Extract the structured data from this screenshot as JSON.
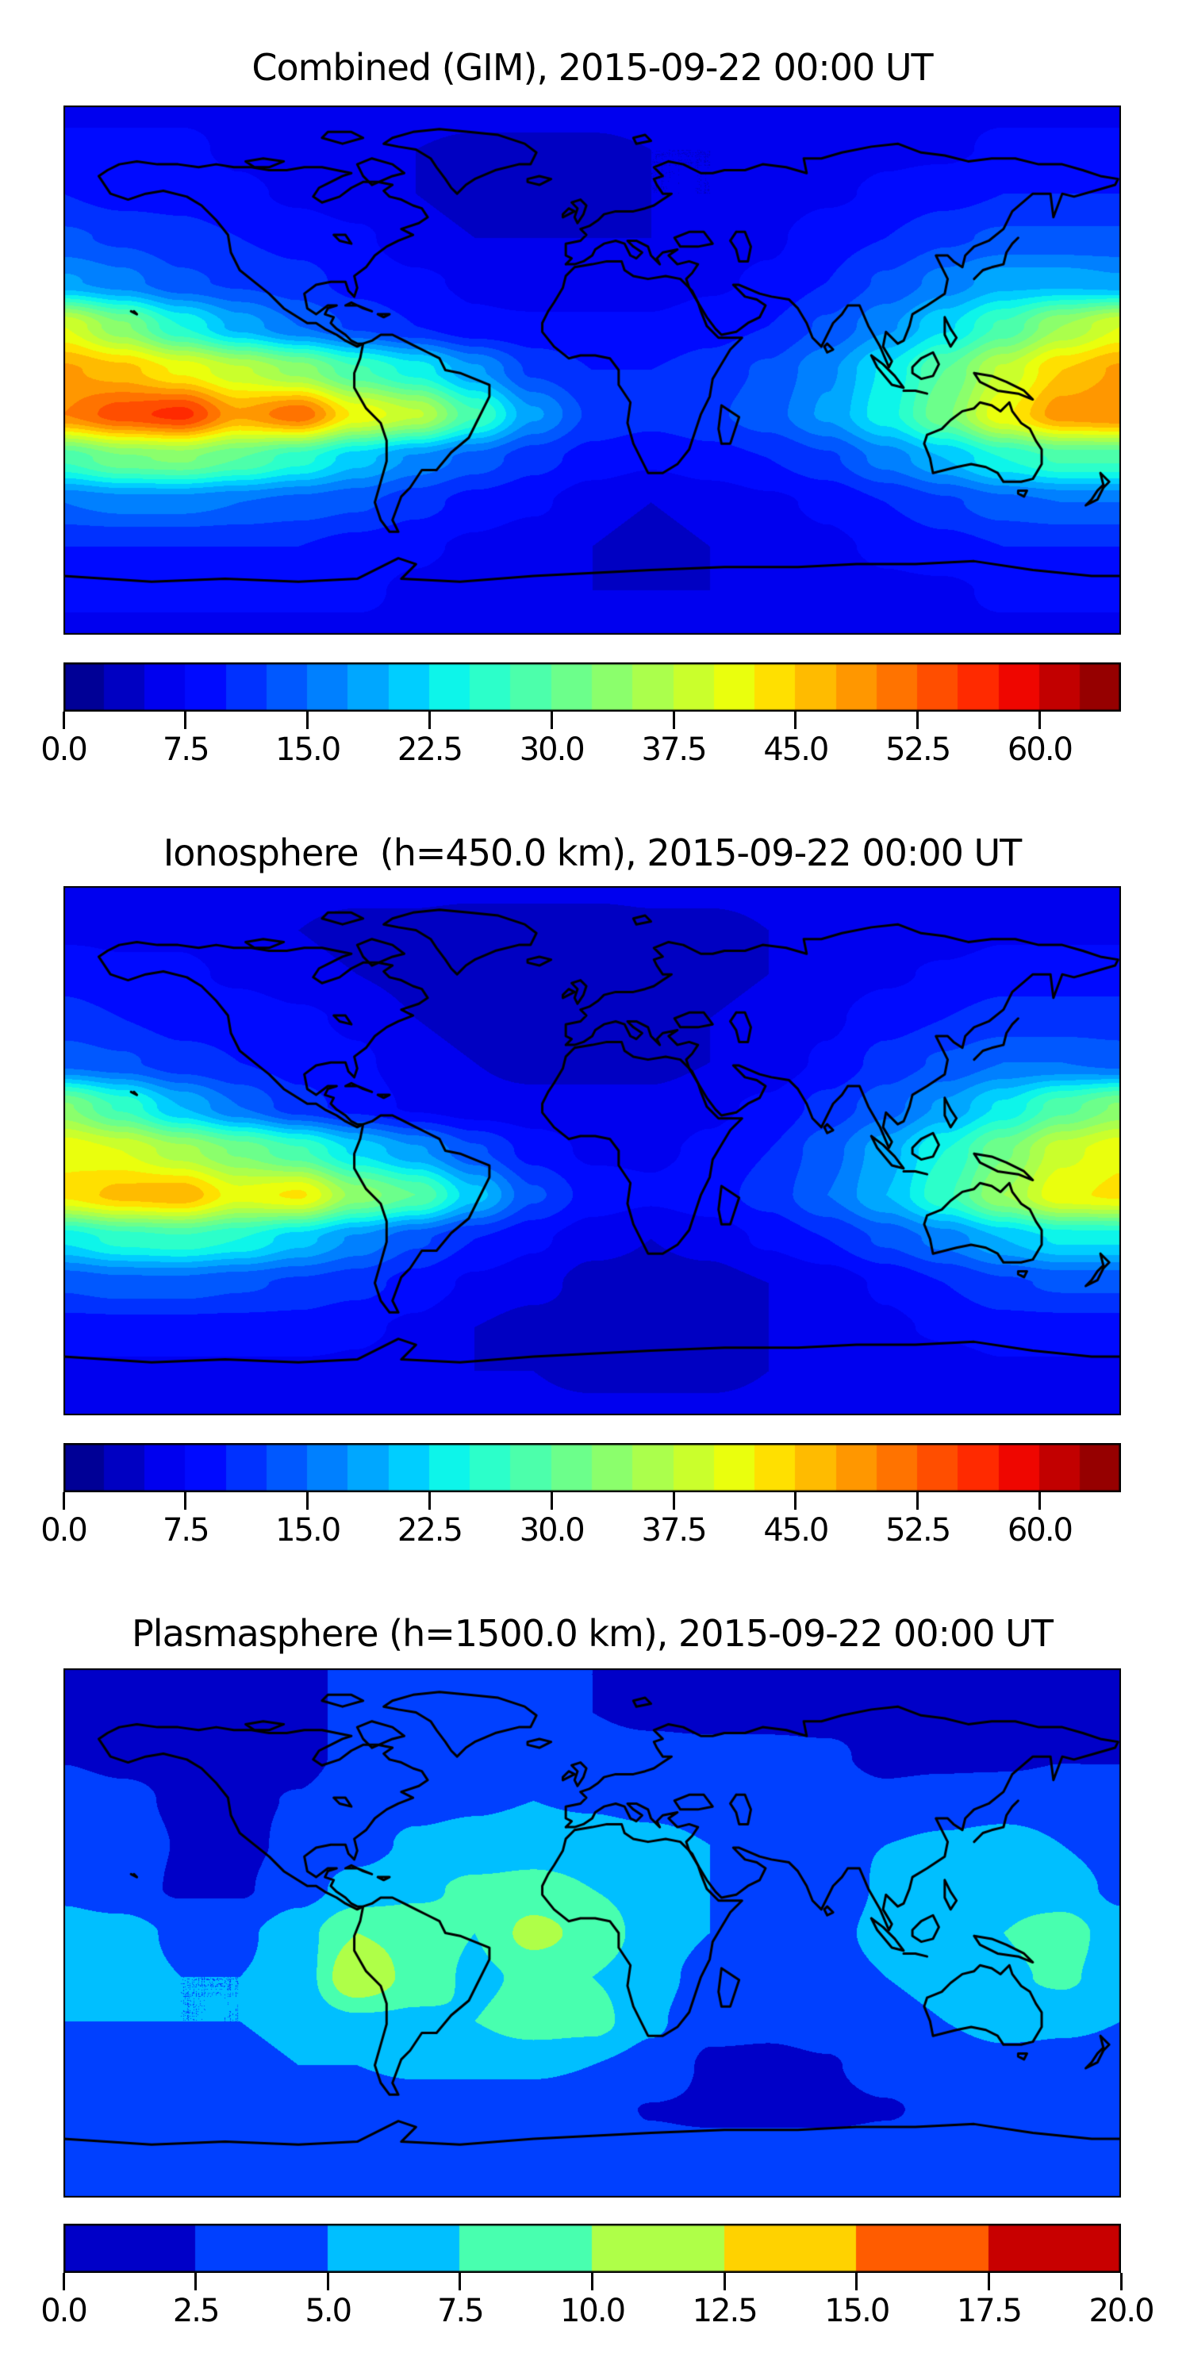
{
  "figure": {
    "background": "#ffffff",
    "coastline_color": "#000000",
    "frame_color": "#000000"
  },
  "chart_data": [
    {
      "type": "heatmap",
      "title": "Combined (GIM), 2015-09-22 00:00 UT",
      "projection": "equirectangular",
      "extent": {
        "lon": [
          -180,
          180
        ],
        "lat": [
          -90,
          90
        ]
      },
      "colormap": "jet",
      "colorbar": {
        "vmin": 0.0,
        "vmax": 65.0,
        "level_step": 2.5,
        "tick_labels": [
          "0.0",
          "7.5",
          "15.0",
          "22.5",
          "30.0",
          "37.5",
          "45.0",
          "52.5",
          "60.0"
        ]
      },
      "grid": {
        "lons": [
          -180,
          -160,
          -140,
          -120,
          -100,
          -80,
          -60,
          -40,
          -20,
          0,
          20,
          40,
          60,
          80,
          100,
          120,
          140,
          160,
          180
        ],
        "lats": [
          90,
          75,
          60,
          45,
          30,
          15,
          0,
          -15,
          -30,
          -45,
          -60,
          -75,
          -90
        ],
        "values": [
          [
            7,
            7,
            7,
            7,
            7,
            7,
            7,
            7,
            7,
            7,
            7,
            7,
            7,
            7,
            7,
            7,
            7,
            7,
            7
          ],
          [
            8,
            8,
            8,
            7,
            6,
            5,
            5,
            4,
            4,
            4,
            5,
            5,
            6,
            6,
            7,
            7,
            8,
            8,
            8
          ],
          [
            10,
            9,
            9,
            8,
            7,
            6,
            5,
            4,
            4,
            4,
            5,
            5,
            6,
            7,
            8,
            9,
            10,
            10,
            10
          ],
          [
            13,
            12,
            11,
            10,
            9,
            8,
            6,
            5,
            5,
            5,
            5,
            6,
            7,
            9,
            10,
            12,
            13,
            13,
            13
          ],
          [
            18,
            16,
            13,
            12,
            11,
            9,
            8,
            7,
            6,
            6,
            6,
            7,
            8,
            10,
            13,
            16,
            19,
            19,
            18
          ],
          [
            40,
            33,
            25,
            19,
            15,
            12,
            10,
            8,
            8,
            8,
            8,
            9,
            10,
            13,
            17,
            22,
            28,
            35,
            40
          ],
          [
            48,
            46,
            42,
            38,
            34,
            28,
            24,
            18,
            12,
            10,
            10,
            11,
            13,
            17,
            23,
            30,
            38,
            45,
            48
          ],
          [
            50,
            54,
            56,
            48,
            52,
            42,
            38,
            28,
            18,
            12,
            11,
            12,
            14,
            18,
            24,
            32,
            42,
            49,
            50
          ],
          [
            28,
            32,
            33,
            30,
            26,
            21,
            17,
            14,
            11,
            9,
            8,
            9,
            10,
            12,
            16,
            20,
            25,
            28,
            28
          ],
          [
            15,
            16,
            16,
            15,
            14,
            13,
            11,
            9,
            8,
            6,
            5,
            6,
            7,
            8,
            10,
            12,
            14,
            15,
            15
          ],
          [
            10,
            10,
            10,
            10,
            10,
            9,
            8,
            7,
            6,
            5,
            4,
            5,
            6,
            7,
            8,
            9,
            10,
            10,
            10
          ],
          [
            8,
            8,
            8,
            8,
            8,
            8,
            7,
            6,
            6,
            5,
            5,
            5,
            6,
            6,
            7,
            7,
            8,
            8,
            8
          ],
          [
            7,
            7,
            7,
            7,
            7,
            7,
            7,
            7,
            7,
            7,
            7,
            7,
            7,
            7,
            7,
            7,
            7,
            7,
            7
          ]
        ]
      }
    },
    {
      "type": "heatmap",
      "title": "Ionosphere  (h=450.0 km), 2015-09-22 00:00 UT",
      "projection": "equirectangular",
      "extent": {
        "lon": [
          -180,
          180
        ],
        "lat": [
          -90,
          90
        ]
      },
      "colormap": "jet",
      "colorbar": {
        "vmin": 0.0,
        "vmax": 65.0,
        "level_step": 2.5,
        "tick_labels": [
          "0.0",
          "7.5",
          "15.0",
          "22.5",
          "30.0",
          "37.5",
          "45.0",
          "52.5",
          "60.0"
        ]
      },
      "grid": {
        "lons": [
          -180,
          -160,
          -140,
          -120,
          -100,
          -80,
          -60,
          -40,
          -20,
          0,
          20,
          40,
          60,
          80,
          100,
          120,
          140,
          160,
          180
        ],
        "lats": [
          90,
          75,
          60,
          45,
          30,
          15,
          0,
          -15,
          -30,
          -45,
          -60,
          -75,
          -90
        ],
        "values": [
          [
            6,
            6,
            6,
            6,
            6,
            6,
            6,
            6,
            6,
            6,
            6,
            6,
            6,
            6,
            6,
            6,
            6,
            6,
            6
          ],
          [
            7,
            7,
            7,
            6,
            5,
            4,
            4,
            3,
            3,
            3,
            4,
            4,
            5,
            5,
            6,
            6,
            7,
            7,
            7
          ],
          [
            9,
            8,
            8,
            7,
            6,
            5,
            4,
            3,
            3,
            3,
            4,
            4,
            5,
            6,
            7,
            8,
            9,
            9,
            9
          ],
          [
            11,
            10,
            9,
            9,
            8,
            7,
            5,
            4,
            4,
            4,
            4,
            5,
            6,
            7,
            9,
            10,
            11,
            11,
            11
          ],
          [
            14,
            13,
            11,
            10,
            9,
            8,
            6,
            5,
            4,
            4,
            4,
            5,
            6,
            8,
            11,
            13,
            15,
            15,
            14
          ],
          [
            33,
            27,
            20,
            15,
            11,
            9,
            7,
            6,
            6,
            6,
            6,
            7,
            8,
            11,
            14,
            18,
            23,
            29,
            33
          ],
          [
            42,
            40,
            36,
            32,
            28,
            22,
            18,
            13,
            9,
            7,
            7,
            8,
            10,
            14,
            19,
            25,
            32,
            39,
            42
          ],
          [
            43,
            46,
            47,
            41,
            43,
            34,
            30,
            21,
            13,
            9,
            8,
            9,
            11,
            15,
            20,
            27,
            35,
            42,
            43
          ],
          [
            23,
            26,
            27,
            25,
            21,
            17,
            13,
            10,
            8,
            6,
            5,
            6,
            8,
            10,
            13,
            16,
            20,
            23,
            23
          ],
          [
            13,
            14,
            14,
            13,
            12,
            11,
            9,
            7,
            6,
            4,
            4,
            4,
            5,
            6,
            8,
            10,
            12,
            13,
            13
          ],
          [
            9,
            9,
            9,
            9,
            9,
            8,
            7,
            5,
            4,
            4,
            3,
            4,
            5,
            6,
            7,
            8,
            9,
            9,
            9
          ],
          [
            7,
            7,
            7,
            7,
            7,
            7,
            6,
            5,
            5,
            4,
            4,
            4,
            5,
            5,
            6,
            6,
            7,
            7,
            7
          ],
          [
            6,
            6,
            6,
            6,
            6,
            6,
            6,
            6,
            6,
            6,
            6,
            6,
            6,
            6,
            6,
            6,
            6,
            6,
            6
          ]
        ]
      }
    },
    {
      "type": "heatmap",
      "title": "Plasmasphere (h=1500.0 km), 2015-09-22 00:00 UT",
      "projection": "equirectangular",
      "extent": {
        "lon": [
          -180,
          180
        ],
        "lat": [
          -90,
          90
        ]
      },
      "colormap": "jet",
      "colorbar": {
        "vmin": 0.0,
        "vmax": 20.0,
        "level_step": 2.5,
        "tick_labels": [
          "0.0",
          "2.5",
          "5.0",
          "7.5",
          "10.0",
          "12.5",
          "15.0",
          "17.5",
          "20.0"
        ]
      },
      "grid": {
        "lons": [
          -180,
          -160,
          -140,
          -120,
          -100,
          -80,
          -60,
          -40,
          -20,
          0,
          20,
          40,
          60,
          80,
          100,
          120,
          140,
          160,
          180
        ],
        "lats": [
          90,
          75,
          60,
          45,
          30,
          15,
          0,
          -15,
          -30,
          -45,
          -60,
          -75,
          -90
        ],
        "values": [
          [
            2,
            2,
            2,
            2,
            2,
            3,
            3,
            3,
            3,
            2.5,
            2,
            2,
            2,
            2,
            2,
            2,
            2,
            2,
            2
          ],
          [
            2,
            2,
            2,
            2,
            2,
            3,
            3.2,
            3.2,
            3,
            2.5,
            2.2,
            2,
            2,
            2,
            2,
            2,
            2,
            2,
            2
          ],
          [
            2.4,
            2,
            2,
            2,
            2,
            3,
            3.6,
            3.6,
            3.4,
            3,
            3,
            3,
            3,
            2.8,
            2,
            2,
            2,
            2.4,
            2.4
          ],
          [
            3.5,
            3,
            2.2,
            2.2,
            2.6,
            3.6,
            4.2,
            4.6,
            5,
            4.6,
            4,
            3.6,
            3.5,
            3.5,
            3,
            3.5,
            3.8,
            3.8,
            3.5
          ],
          [
            4,
            3.5,
            2.4,
            2,
            3,
            4,
            5.5,
            6,
            6.5,
            6.5,
            6,
            5,
            4.5,
            4.5,
            5,
            5.5,
            6,
            5,
            4
          ],
          [
            4.5,
            3.5,
            2.2,
            2.2,
            4,
            6,
            7,
            8,
            8.2,
            7.5,
            6.5,
            5,
            2.6,
            3,
            5.5,
            6,
            6.5,
            6,
            4.5
          ],
          [
            6,
            6,
            4.5,
            4.5,
            6.5,
            10,
            9,
            7.5,
            11,
            9,
            6.5,
            5,
            3.2,
            4,
            6,
            6.5,
            7.5,
            8.8,
            6
          ],
          [
            6,
            6,
            5,
            5,
            6,
            12.5,
            9,
            7,
            8,
            7.5,
            6,
            4,
            3,
            3.5,
            5,
            6,
            7,
            8,
            6
          ],
          [
            5,
            5,
            5,
            5,
            6,
            7,
            7,
            7.5,
            8.8,
            8.5,
            5.5,
            3,
            2.8,
            3,
            4,
            5,
            6,
            5.5,
            5
          ],
          [
            4,
            4,
            4,
            4,
            5,
            5,
            5.5,
            5.5,
            5.5,
            5,
            4,
            2.2,
            2.2,
            2.4,
            3,
            3.5,
            4,
            4,
            4
          ],
          [
            3,
            3,
            3,
            3,
            3.2,
            3.4,
            3.5,
            3.5,
            3.4,
            3.2,
            2.4,
            2.2,
            2.2,
            2.2,
            2.4,
            2.8,
            3,
            3,
            3
          ],
          [
            3,
            3,
            3,
            3,
            3,
            3,
            3,
            3,
            3,
            3,
            3,
            3,
            3,
            3,
            3,
            3,
            3,
            3,
            3
          ],
          [
            3,
            3,
            3,
            3,
            3,
            3,
            3,
            3,
            3,
            3,
            3,
            3,
            3,
            3,
            3,
            3,
            3,
            3,
            3
          ]
        ]
      }
    }
  ]
}
